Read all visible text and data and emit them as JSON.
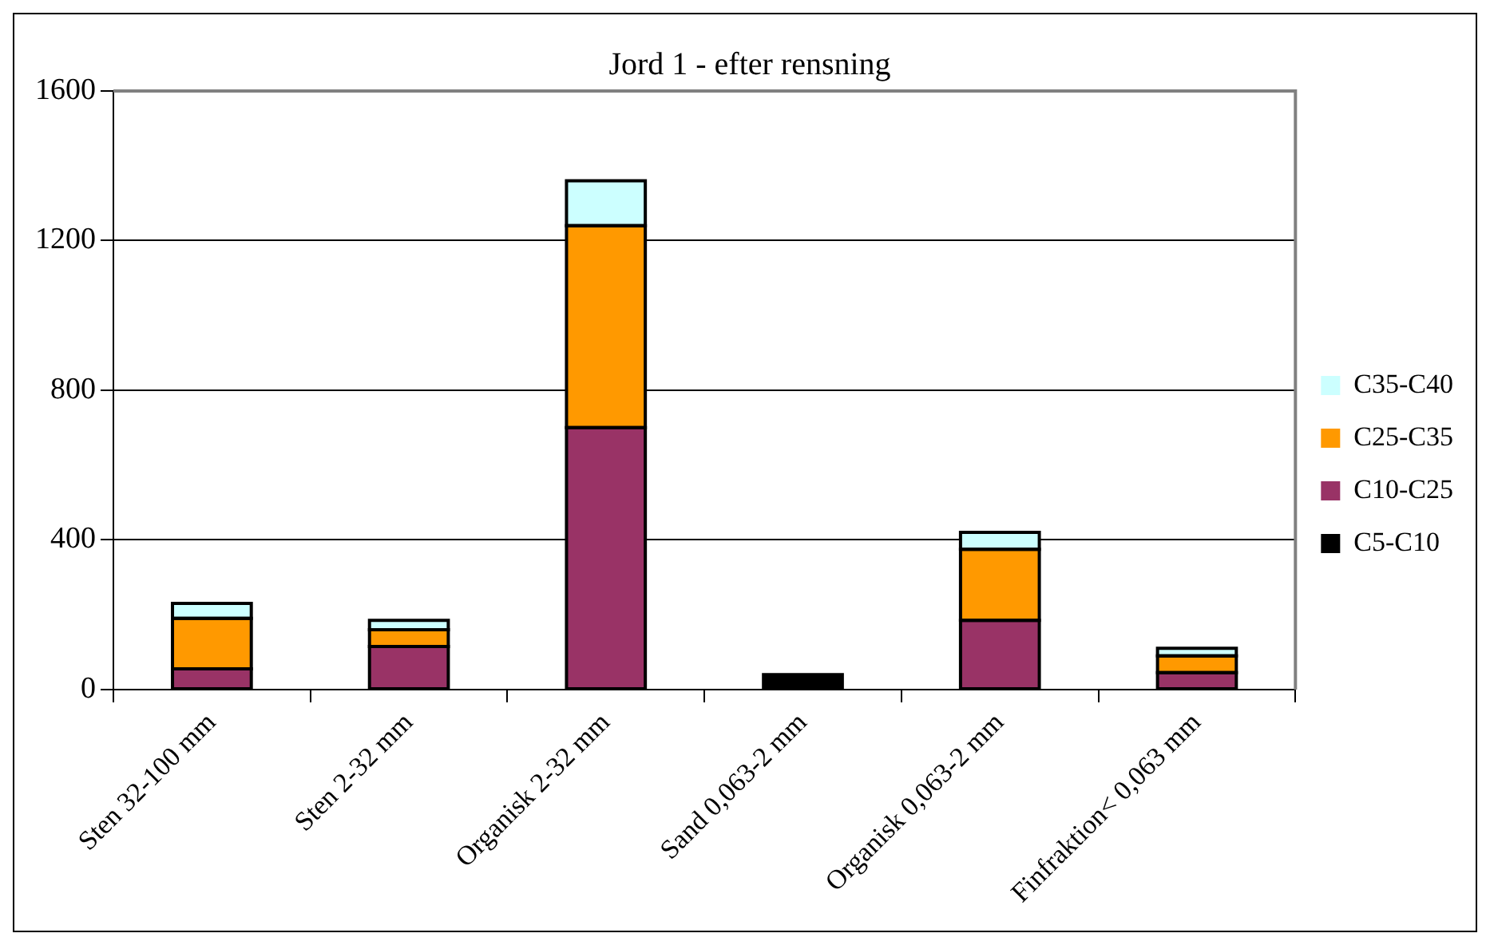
{
  "chart_data": {
    "type": "bar",
    "title": "Jord 1 - efter rensning",
    "stacked": true,
    "categories": [
      "Sten 32-100 mm",
      "Sten 2-32 mm",
      "Organisk 2-32 mm",
      "Sand 0,063-2 mm",
      "Organisk 0,063-2 mm",
      "Finfraktion< 0,063 mm"
    ],
    "series": [
      {
        "name": "C5-C10",
        "color": "#000000",
        "values": [
          0,
          0,
          0,
          40,
          0,
          0
        ]
      },
      {
        "name": "C10-C25",
        "color": "#993366",
        "values": [
          55,
          115,
          700,
          0,
          185,
          45
        ]
      },
      {
        "name": "C25-C35",
        "color": "#ff9900",
        "values": [
          135,
          45,
          540,
          0,
          190,
          45
        ]
      },
      {
        "name": "C35-C40",
        "color": "#ccffff",
        "values": [
          40,
          25,
          120,
          0,
          45,
          20
        ]
      }
    ],
    "ylim": [
      0,
      1600
    ],
    "yticks": [
      0,
      400,
      800,
      1200,
      1600
    ],
    "grid": "y",
    "legend": "right"
  }
}
